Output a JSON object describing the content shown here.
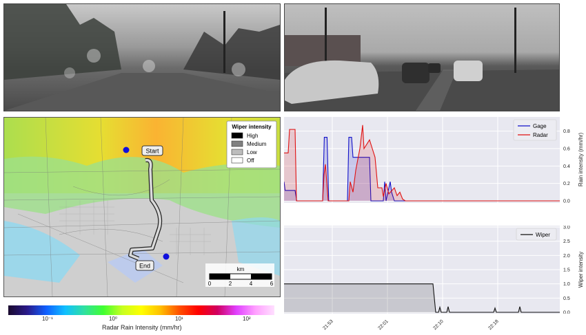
{
  "camera_frames": [
    {
      "name": "dashcam-left",
      "description": "windshield view rainy road trees"
    },
    {
      "name": "dashcam-right",
      "description": "windshield view cars utility poles"
    }
  ],
  "map": {
    "legend_title": "Wiper intensity",
    "legend_items": [
      {
        "label": "High",
        "color": "#000000"
      },
      {
        "label": "Medium",
        "color": "#808080"
      },
      {
        "label": "Low",
        "color": "#bdbdbd"
      },
      {
        "label": "Off",
        "color": "#ffffff"
      }
    ],
    "start_label": "Start",
    "end_label": "End",
    "scale_unit": "km",
    "scale_ticks": [
      "0",
      "2",
      "4",
      "6"
    ],
    "marker_color": "#1010dd"
  },
  "colorbar": {
    "label": "Radar Rain Intensity (mm/hr)",
    "ticks": [
      "10⁻¹",
      "10⁰",
      "10¹",
      "10²"
    ],
    "colors": [
      "#1a0a2e",
      "#2a1a8a",
      "#1060ff",
      "#10c0ff",
      "#30e0a0",
      "#40ff30",
      "#c8ff20",
      "#ffff00",
      "#ffc000",
      "#ff5000",
      "#ff0000",
      "#d00060",
      "#e040ff",
      "#ffa0ff",
      "#ffe0ff"
    ]
  },
  "chart_data": [
    {
      "type": "line",
      "ylabel": "Rain intensity (mm/hr)",
      "ylim": [
        0,
        0.9
      ],
      "yticks": [
        "0.0",
        "0.2",
        "0.4",
        "0.6",
        "0.8"
      ],
      "legend_position": "top-right",
      "grid": true,
      "series": [
        {
          "name": "Gage",
          "color": "#1010c8",
          "points": [
            [
              0,
              0.22
            ],
            [
              0.4,
              0.12
            ],
            [
              4,
              0.12
            ],
            [
              4.6,
              0
            ],
            [
              14,
              0
            ],
            [
              14.6,
              0.73
            ],
            [
              15.6,
              0.73
            ],
            [
              16.2,
              0
            ],
            [
              23,
              0
            ],
            [
              23.5,
              0.73
            ],
            [
              24.5,
              0.73
            ],
            [
              25,
              0.5
            ],
            [
              31,
              0.5
            ],
            [
              31.5,
              0
            ],
            [
              36,
              0
            ],
            [
              36.5,
              0.22
            ],
            [
              37,
              0
            ],
            [
              38.5,
              0.22
            ],
            [
              39,
              0.1
            ],
            [
              40,
              0
            ],
            [
              100,
              0
            ]
          ]
        },
        {
          "name": "Radar",
          "color": "#e01010",
          "points": [
            [
              0,
              0.55
            ],
            [
              1.5,
              0.55
            ],
            [
              2,
              0.82
            ],
            [
              4,
              0.82
            ],
            [
              4.5,
              0
            ],
            [
              14,
              0
            ],
            [
              14.5,
              0.3
            ],
            [
              15,
              0.42
            ],
            [
              16,
              0
            ],
            [
              23.5,
              0
            ],
            [
              24,
              0.22
            ],
            [
              25,
              0.1
            ],
            [
              26,
              0.35
            ],
            [
              27.5,
              0.6
            ],
            [
              28.5,
              0.87
            ],
            [
              29,
              0.6
            ],
            [
              31,
              0.7
            ],
            [
              32,
              0.6
            ],
            [
              33,
              0.5
            ],
            [
              34,
              0.15
            ],
            [
              35.5,
              0.15
            ],
            [
              36,
              0.05
            ],
            [
              37,
              0.2
            ],
            [
              38,
              0.08
            ],
            [
              40,
              0.15
            ],
            [
              41,
              0.06
            ],
            [
              42,
              0.1
            ],
            [
              43,
              0.02
            ],
            [
              44,
              0
            ],
            [
              100,
              0
            ]
          ]
        }
      ]
    },
    {
      "type": "area",
      "ylabel": "Wiper intensity",
      "ylim": [
        0,
        3.0
      ],
      "yticks": [
        "0.0",
        "0.5",
        "1.0",
        "1.5",
        "2.0",
        "2.5",
        "3.0"
      ],
      "xticks": [
        "21:53",
        "22:01",
        "22:10",
        "22:18"
      ],
      "legend_position": "top-right",
      "grid": true,
      "series": [
        {
          "name": "Wiper",
          "color": "#111111",
          "points": [
            [
              0,
              1
            ],
            [
              54,
              1
            ],
            [
              55,
              0
            ],
            [
              56,
              0
            ],
            [
              56.5,
              0.18
            ],
            [
              57,
              0
            ],
            [
              59,
              0
            ],
            [
              59.5,
              0.2
            ],
            [
              60,
              0
            ],
            [
              76,
              0
            ],
            [
              76.5,
              0.15
            ],
            [
              77,
              0
            ],
            [
              85,
              0
            ],
            [
              85.5,
              0.2
            ],
            [
              86,
              0
            ],
            [
              100,
              0
            ]
          ]
        }
      ]
    }
  ]
}
